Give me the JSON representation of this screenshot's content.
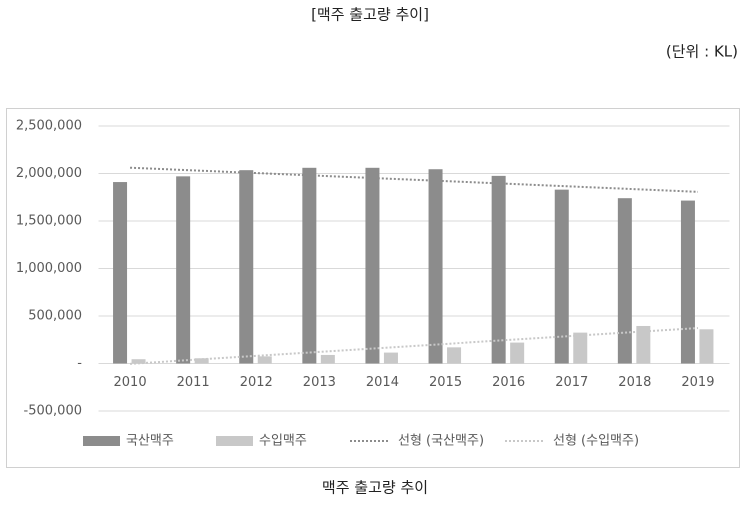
{
  "chart_data": {
    "type": "bar",
    "heading": "[맥주 출고량 추이]",
    "unit_note": "(단위 : KL)",
    "title": "맥주 출고량 추이",
    "categories": [
      "2010",
      "2011",
      "2012",
      "2013",
      "2014",
      "2015",
      "2016",
      "2017",
      "2018",
      "2019"
    ],
    "series": [
      {
        "name": "국산맥주",
        "color": "#8c8c8c",
        "values": [
          1910000,
          1970000,
          2035000,
          2060000,
          2060000,
          2045000,
          1975000,
          1830000,
          1740000,
          1715000
        ],
        "trendline": {
          "type": "linear",
          "name": "선형 (국산맥주)"
        }
      },
      {
        "name": "수입맥주",
        "color": "#c8c8c8",
        "values": [
          45000,
          55000,
          75000,
          90000,
          115000,
          170000,
          220000,
          325000,
          395000,
          360000
        ],
        "trendline": {
          "type": "linear",
          "name": "선형 (수입맥주)"
        }
      }
    ],
    "ylim": [
      -500000,
      2500000
    ],
    "yticks": [
      {
        "value": -500000,
        "label": "-500,000"
      },
      {
        "value": 0,
        "label": "-"
      },
      {
        "value": 500000,
        "label": "500,000"
      },
      {
        "value": 1000000,
        "label": "1,000,000"
      },
      {
        "value": 1500000,
        "label": "1,500,000"
      },
      {
        "value": 2000000,
        "label": "2,000,000"
      },
      {
        "value": 2500000,
        "label": "2,500,000"
      }
    ],
    "grid": true,
    "legend": "bottom"
  }
}
